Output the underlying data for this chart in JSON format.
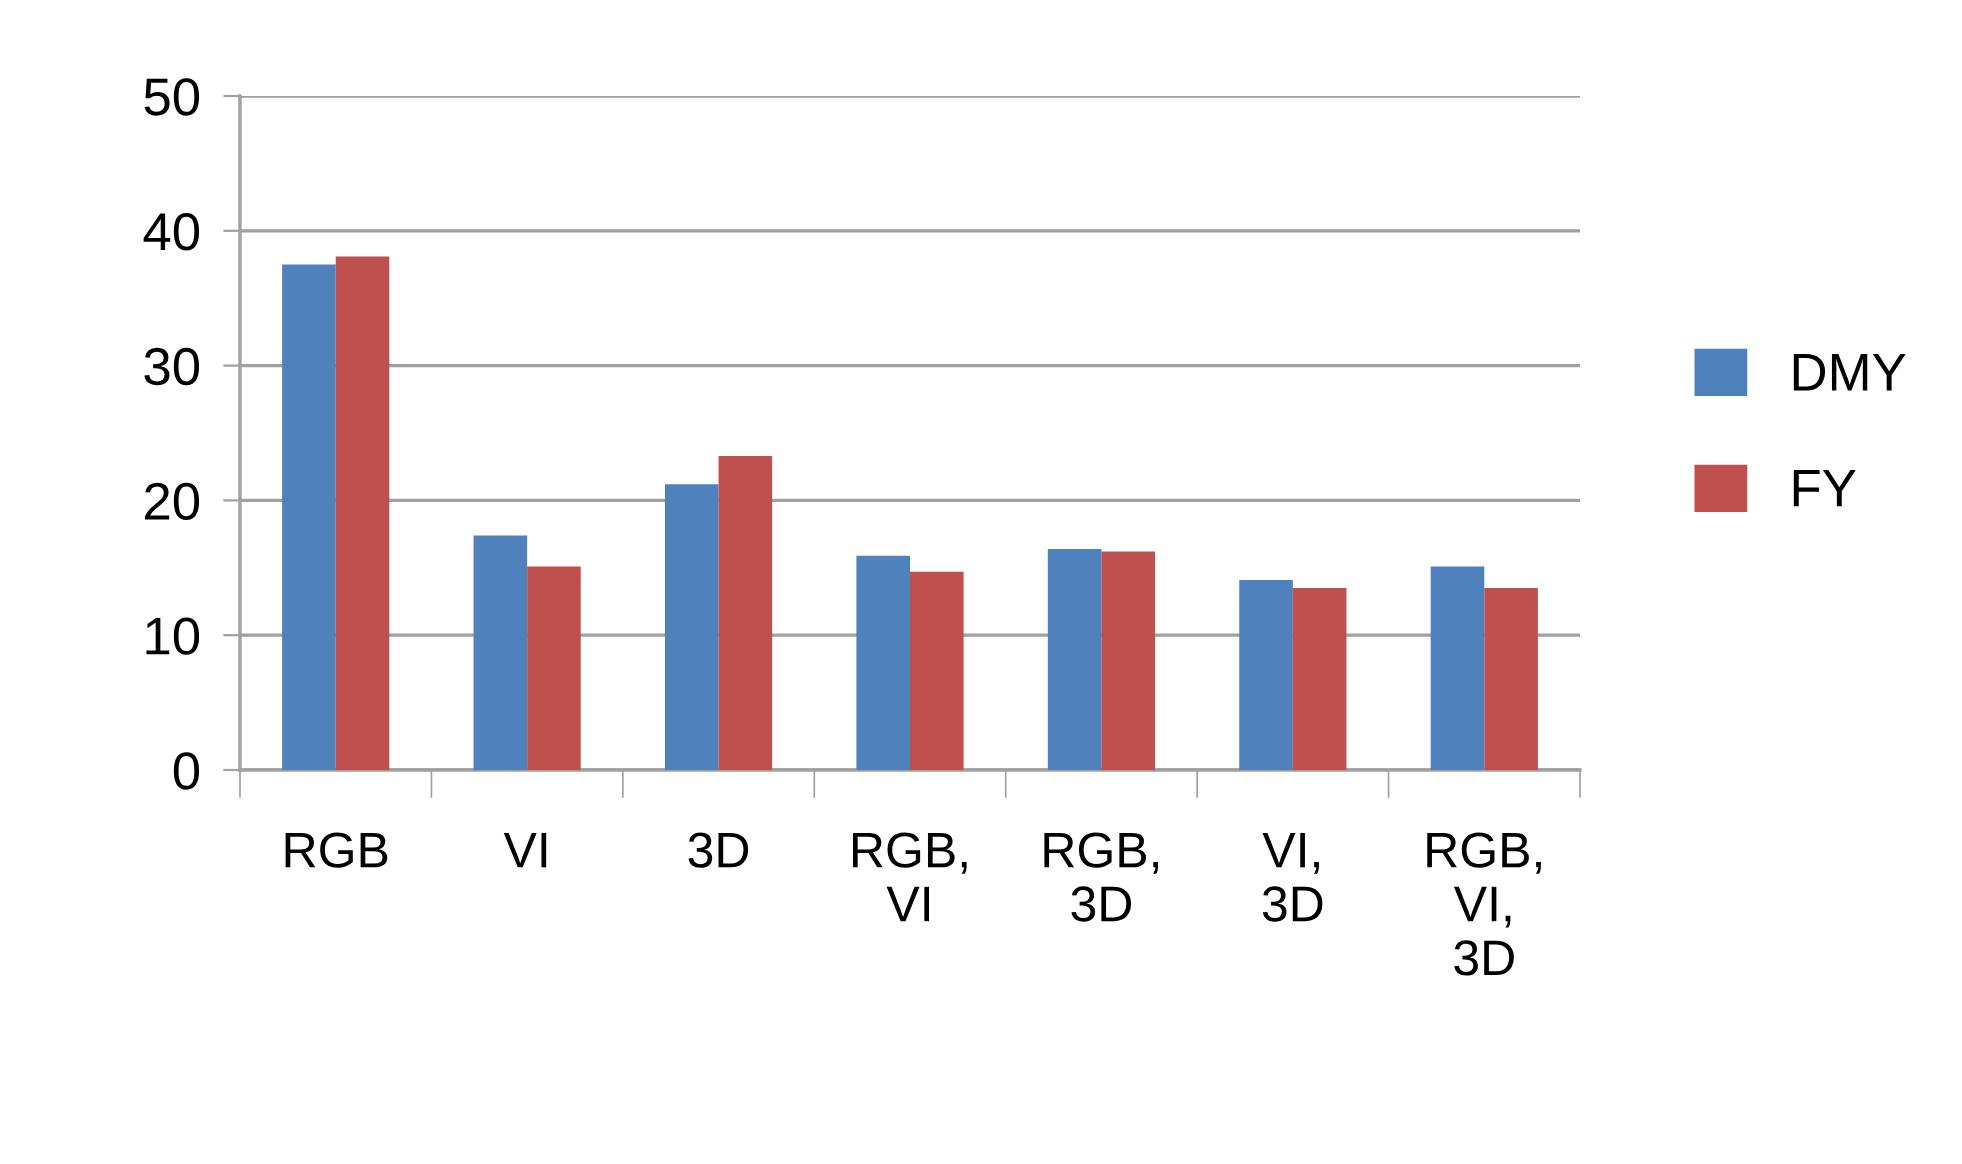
{
  "chart_data": {
    "type": "bar",
    "categories": [
      "RGB",
      "VI",
      "3D",
      "RGB,\nVI",
      "RGB,\n3D",
      "VI,\n3D",
      "RGB,\nVI,\n3D"
    ],
    "series": [
      {
        "name": "DMY",
        "color": "#4f81bd",
        "values": [
          37.5,
          17.4,
          21.2,
          15.9,
          16.4,
          14.1,
          15.1
        ]
      },
      {
        "name": "FY",
        "color": "#c0504d",
        "values": [
          38.1,
          15.1,
          23.3,
          14.7,
          16.2,
          13.5,
          13.5
        ]
      }
    ],
    "ylim": [
      0,
      50
    ],
    "yticks": [
      0,
      10,
      20,
      30,
      40,
      50
    ],
    "grid": "y",
    "legend": "right"
  }
}
